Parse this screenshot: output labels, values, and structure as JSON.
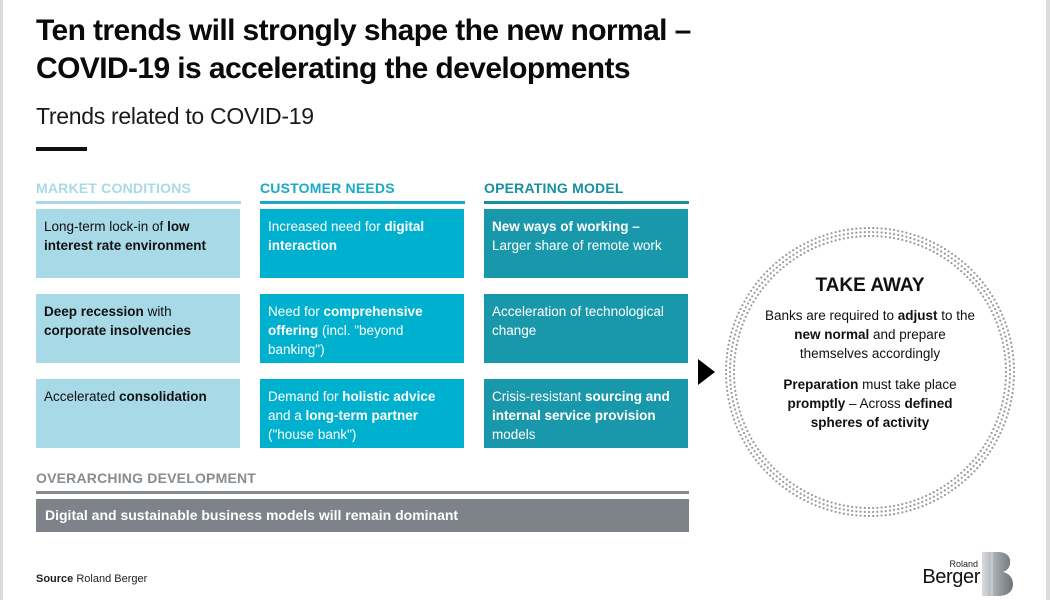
{
  "slide": {
    "title_line1": "Ten trends will strongly shape the new normal –",
    "title_line2": "COVID-19 is accelerating the developments",
    "subtitle": "Trends related to COVID-19"
  },
  "columns": [
    {
      "header": "MARKET CONDITIONS",
      "color": "#a8d9e6",
      "cards": [
        {
          "parts": [
            {
              "t": "Long-term lock-in of ",
              "b": false
            },
            {
              "t": "low interest rate environment",
              "b": true
            }
          ]
        },
        {
          "parts": [
            {
              "t": "Deep recession",
              "b": true
            },
            {
              "t": " with ",
              "b": false
            },
            {
              "t": "corporate insolvencies",
              "b": true
            }
          ]
        },
        {
          "parts": [
            {
              "t": "Accelerated ",
              "b": false
            },
            {
              "t": "consolidation",
              "b": true
            }
          ]
        }
      ]
    },
    {
      "header": "CUSTOMER NEEDS",
      "color": "#00b0cf",
      "cards": [
        {
          "parts": [
            {
              "t": "Increased need for ",
              "b": false
            },
            {
              "t": "digital interaction",
              "b": true
            }
          ]
        },
        {
          "parts": [
            {
              "t": "Need for ",
              "b": false
            },
            {
              "t": "comprehensive offering",
              "b": true
            },
            {
              "t": " (incl. \"beyond banking\")",
              "b": false
            }
          ]
        },
        {
          "parts": [
            {
              "t": "Demand for ",
              "b": false
            },
            {
              "t": "holistic advice",
              "b": true
            },
            {
              "t": " and a ",
              "b": false
            },
            {
              "t": "long-term partner",
              "b": true
            },
            {
              "t": " (\"house bank\")",
              "b": false
            }
          ]
        }
      ]
    },
    {
      "header": "OPERATING MODEL",
      "color": "#1a98ab",
      "cards": [
        {
          "parts": [
            {
              "t": "New ways of working –",
              "b": true
            },
            {
              "t": " Larger share of remote work",
              "b": false
            }
          ]
        },
        {
          "parts": [
            {
              "t": "Acceleration of technological change",
              "b": false
            }
          ]
        },
        {
          "parts": [
            {
              "t": "Crisis-resistant ",
              "b": false
            },
            {
              "t": "sourcing and internal service provision",
              "b": true
            },
            {
              "t": " models",
              "b": false
            }
          ]
        }
      ]
    }
  ],
  "overarching": {
    "header": "OVERARCHING DEVELOPMENT",
    "text": "Digital and sustainable business models will remain dominant",
    "color": "#7d8388"
  },
  "takeaway": {
    "title": "TAKE AWAY",
    "p1": [
      {
        "t": "Banks are required to ",
        "b": false
      },
      {
        "t": "adjust",
        "b": true
      },
      {
        "t": " to the ",
        "b": false
      },
      {
        "t": "new normal",
        "b": true
      },
      {
        "t": " and prepare themselves accordingly",
        "b": false
      }
    ],
    "p2": [
      {
        "t": "Preparation",
        "b": true
      },
      {
        "t": " must take place ",
        "b": false
      },
      {
        "t": "promptly",
        "b": true
      },
      {
        "t": " – Across ",
        "b": false
      },
      {
        "t": "defined spheres of activity",
        "b": true
      }
    ]
  },
  "footer": {
    "source_label": "Source",
    "source_value": " Roland Berger",
    "logo_small": "Roland",
    "logo_big": "Berger"
  },
  "icons": {
    "arrow": "arrow-right-icon",
    "ring": "dotted-ring",
    "logo": "roland-berger-b-logo"
  }
}
